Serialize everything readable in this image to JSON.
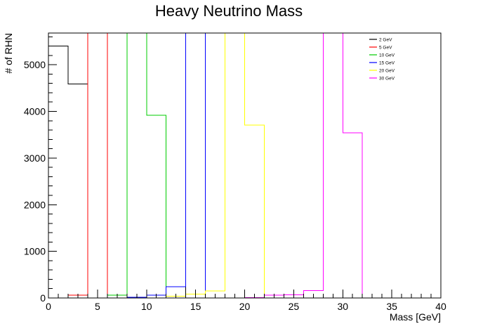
{
  "chart_data": {
    "type": "histogram-step",
    "title": "Heavy Neutrino Mass",
    "xlabel": "Mass [GeV]",
    "ylabel": "# of RHN",
    "xlim": [
      0,
      40
    ],
    "ylim": [
      0,
      5680
    ],
    "x_ticks": [
      0,
      5,
      10,
      15,
      20,
      25,
      30,
      35,
      40
    ],
    "y_ticks": [
      0,
      1000,
      2000,
      3000,
      4000,
      5000
    ],
    "legend_placement": "top-right",
    "grid": false,
    "series": [
      {
        "name": "2 GeV",
        "color": "#000000",
        "bins": [
          {
            "x0": 0,
            "x1": 2,
            "y": 5400
          },
          {
            "x0": 2,
            "x1": 4,
            "y": 4590
          },
          {
            "x0": 4,
            "x1": 6,
            "y": 0
          },
          {
            "x0": 6,
            "x1": 8,
            "y": 0
          },
          {
            "x0": 8,
            "x1": 10,
            "y": 0
          },
          {
            "x0": 10,
            "x1": 12,
            "y": 0
          },
          {
            "x0": 12,
            "x1": 14,
            "y": 0
          },
          {
            "x0": 14,
            "x1": 16,
            "y": 5680
          },
          {
            "x0": 16,
            "x1": 18,
            "y": 0
          }
        ]
      },
      {
        "name": "5 GeV",
        "color": "#ff0000",
        "bins": [
          {
            "x0": 0,
            "x1": 2,
            "y": 0
          },
          {
            "x0": 2,
            "x1": 4,
            "y": 60
          },
          {
            "x0": 4,
            "x1": 6,
            "y": 5680
          },
          {
            "x0": 6,
            "x1": 8,
            "y": 0
          }
        ]
      },
      {
        "name": "10 GeV",
        "color": "#00cc00",
        "bins": [
          {
            "x0": 4,
            "x1": 6,
            "y": 0
          },
          {
            "x0": 6,
            "x1": 8,
            "y": 60
          },
          {
            "x0": 8,
            "x1": 10,
            "y": 5680
          },
          {
            "x0": 10,
            "x1": 12,
            "y": 3920
          },
          {
            "x0": 12,
            "x1": 14,
            "y": 0
          }
        ]
      },
      {
        "name": "15 GeV",
        "color": "#0000ff",
        "bins": [
          {
            "x0": 6,
            "x1": 8,
            "y": 0
          },
          {
            "x0": 8,
            "x1": 10,
            "y": 15
          },
          {
            "x0": 10,
            "x1": 12,
            "y": 60
          },
          {
            "x0": 12,
            "x1": 14,
            "y": 240
          },
          {
            "x0": 14,
            "x1": 16,
            "y": 5680
          },
          {
            "x0": 16,
            "x1": 18,
            "y": 0
          }
        ]
      },
      {
        "name": "20 GeV",
        "color": "#ffff00",
        "bins": [
          {
            "x0": 10,
            "x1": 12,
            "y": 0
          },
          {
            "x0": 12,
            "x1": 14,
            "y": 40
          },
          {
            "x0": 14,
            "x1": 16,
            "y": 80
          },
          {
            "x0": 16,
            "x1": 18,
            "y": 150
          },
          {
            "x0": 18,
            "x1": 20,
            "y": 5680
          },
          {
            "x0": 20,
            "x1": 22,
            "y": 3710
          },
          {
            "x0": 22,
            "x1": 24,
            "y": 0
          }
        ]
      },
      {
        "name": "30 GeV",
        "color": "#ff00ff",
        "bins": [
          {
            "x0": 18,
            "x1": 20,
            "y": 0
          },
          {
            "x0": 20,
            "x1": 22,
            "y": 10
          },
          {
            "x0": 22,
            "x1": 24,
            "y": 60
          },
          {
            "x0": 24,
            "x1": 26,
            "y": 70
          },
          {
            "x0": 26,
            "x1": 28,
            "y": 160
          },
          {
            "x0": 28,
            "x1": 30,
            "y": 5680
          },
          {
            "x0": 30,
            "x1": 32,
            "y": 3540
          },
          {
            "x0": 32,
            "x1": 34,
            "y": 0
          }
        ]
      }
    ]
  }
}
